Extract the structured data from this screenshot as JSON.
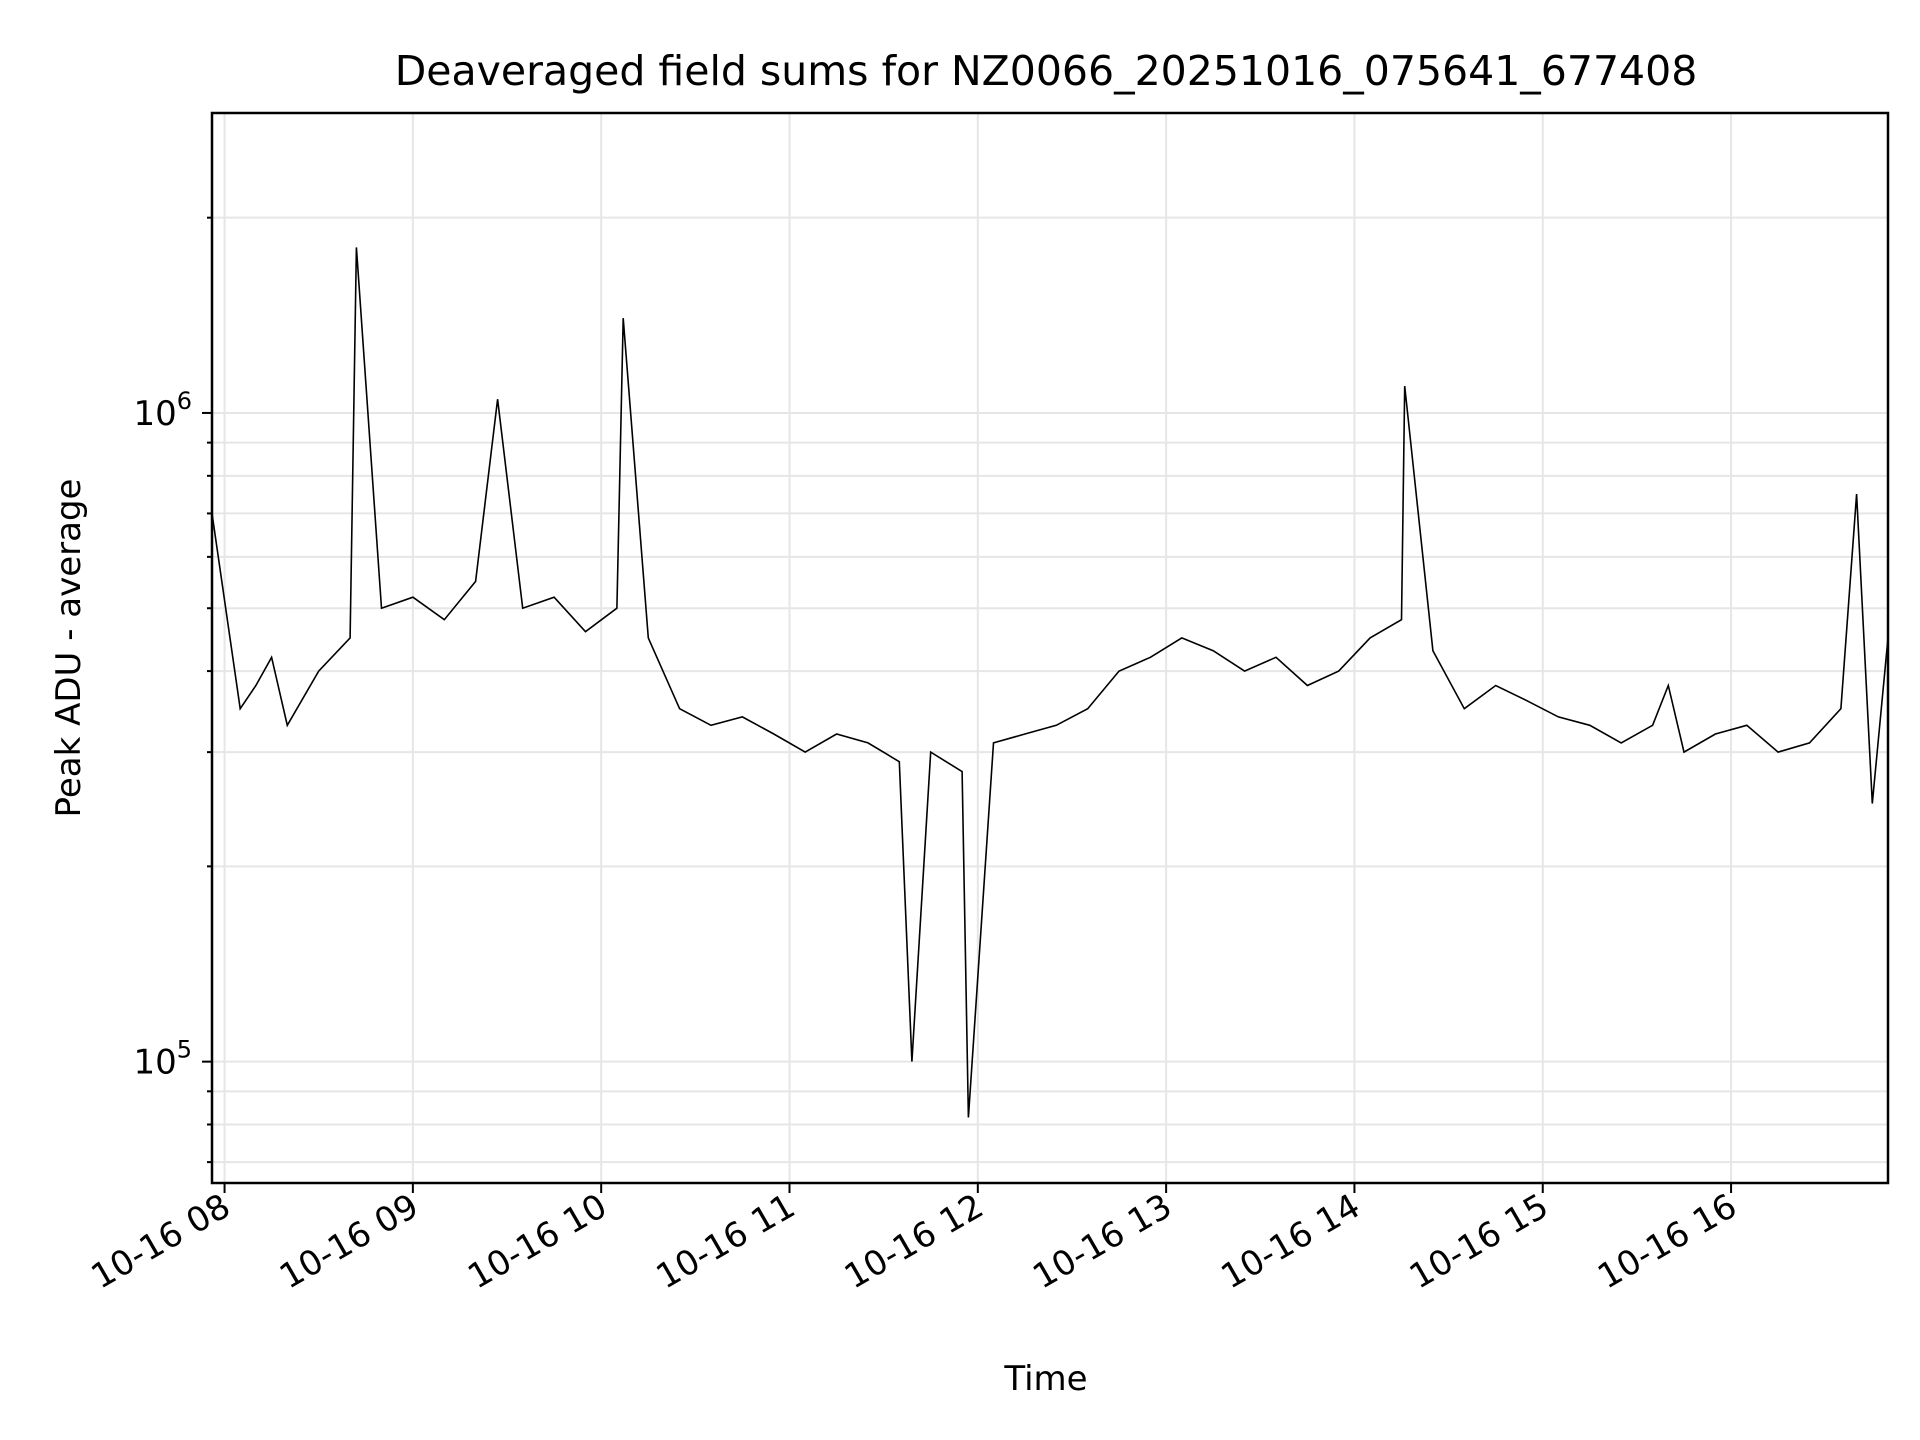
{
  "chart_data": {
    "type": "line",
    "title": "Deaveraged field sums for NZ0066_20251016_075641_677408",
    "xlabel": "Time",
    "ylabel": "Peak ADU - average",
    "yscale": "log",
    "ylim": [
      65000,
      2900000
    ],
    "xlim": [
      "2025-10-16 07:56",
      "2025-10-16 16:50"
    ],
    "grid": true,
    "line_color": "#000000",
    "x_ticks": [
      {
        "label": "10-16 08",
        "value": "2025-10-16 08:00"
      },
      {
        "label": "10-16 09",
        "value": "2025-10-16 09:00"
      },
      {
        "label": "10-16 10",
        "value": "2025-10-16 10:00"
      },
      {
        "label": "10-16 11",
        "value": "2025-10-16 11:00"
      },
      {
        "label": "10-16 12",
        "value": "2025-10-16 12:00"
      },
      {
        "label": "10-16 13",
        "value": "2025-10-16 13:00"
      },
      {
        "label": "10-16 14",
        "value": "2025-10-16 14:00"
      },
      {
        "label": "10-16 15",
        "value": "2025-10-16 15:00"
      },
      {
        "label": "10-16 16",
        "value": "2025-10-16 16:00"
      }
    ],
    "y_major_ticks": [
      {
        "base": "10",
        "exp": "5",
        "value": 100000
      },
      {
        "base": "10",
        "exp": "6",
        "value": 1000000
      }
    ],
    "y_minor_ticks": [
      70000,
      80000,
      90000,
      200000,
      300000,
      400000,
      500000,
      600000,
      700000,
      800000,
      900000,
      2000000
    ],
    "x": [
      "2025-10-16 07:56",
      "2025-10-16 08:05",
      "2025-10-16 08:10",
      "2025-10-16 08:15",
      "2025-10-16 08:20",
      "2025-10-16 08:30",
      "2025-10-16 08:40",
      "2025-10-16 08:42",
      "2025-10-16 08:50",
      "2025-10-16 09:00",
      "2025-10-16 09:10",
      "2025-10-16 09:20",
      "2025-10-16 09:27",
      "2025-10-16 09:35",
      "2025-10-16 09:45",
      "2025-10-16 09:55",
      "2025-10-16 10:05",
      "2025-10-16 10:07",
      "2025-10-16 10:15",
      "2025-10-16 10:25",
      "2025-10-16 10:35",
      "2025-10-16 10:45",
      "2025-10-16 10:55",
      "2025-10-16 11:05",
      "2025-10-16 11:15",
      "2025-10-16 11:25",
      "2025-10-16 11:35",
      "2025-10-16 11:39",
      "2025-10-16 11:45",
      "2025-10-16 11:55",
      "2025-10-16 11:57",
      "2025-10-16 12:05",
      "2025-10-16 12:15",
      "2025-10-16 12:25",
      "2025-10-16 12:35",
      "2025-10-16 12:45",
      "2025-10-16 12:55",
      "2025-10-16 13:05",
      "2025-10-16 13:15",
      "2025-10-16 13:25",
      "2025-10-16 13:35",
      "2025-10-16 13:45",
      "2025-10-16 13:55",
      "2025-10-16 14:05",
      "2025-10-16 14:15",
      "2025-10-16 14:16",
      "2025-10-16 14:25",
      "2025-10-16 14:35",
      "2025-10-16 14:45",
      "2025-10-16 14:55",
      "2025-10-16 15:05",
      "2025-10-16 15:15",
      "2025-10-16 15:25",
      "2025-10-16 15:35",
      "2025-10-16 15:40",
      "2025-10-16 15:45",
      "2025-10-16 15:55",
      "2025-10-16 16:05",
      "2025-10-16 16:15",
      "2025-10-16 16:25",
      "2025-10-16 16:35",
      "2025-10-16 16:40",
      "2025-10-16 16:45",
      "2025-10-16 16:50"
    ],
    "y": [
      700000,
      350000,
      380000,
      420000,
      330000,
      400000,
      450000,
      1800000,
      500000,
      520000,
      480000,
      550000,
      1050000,
      500000,
      520000,
      460000,
      500000,
      1400000,
      450000,
      350000,
      330000,
      340000,
      320000,
      300000,
      320000,
      310000,
      290000,
      100000,
      300000,
      280000,
      82000,
      310000,
      320000,
      330000,
      350000,
      400000,
      420000,
      450000,
      430000,
      400000,
      420000,
      380000,
      400000,
      450000,
      480000,
      1100000,
      430000,
      350000,
      380000,
      360000,
      340000,
      330000,
      310000,
      330000,
      380000,
      300000,
      320000,
      330000,
      300000,
      310000,
      350000,
      750000,
      250000,
      450000
    ]
  }
}
